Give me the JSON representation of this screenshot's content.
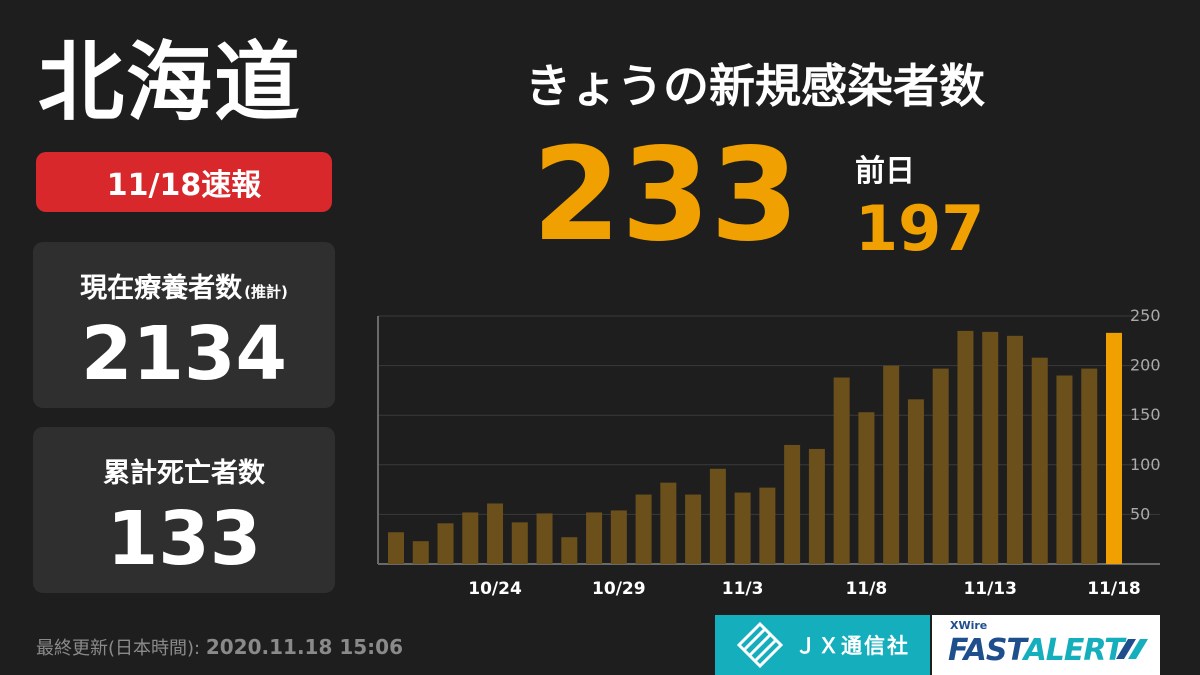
{
  "region": "北海道",
  "badge": "11/18速報",
  "current_care": {
    "label": "現在療養者数",
    "note": "(推計)",
    "value": "2134"
  },
  "cumulative_deaths": {
    "label": "累計死亡者数",
    "value": "133"
  },
  "headline": "きょうの新規感染者数",
  "today_count": "233",
  "previous_day": {
    "label": "前日",
    "value": "197"
  },
  "last_updated": {
    "label": "最終更新(日本時間):",
    "timestamp": "2020.11.18 15:06"
  },
  "logos": {
    "jx": "ＪＸ通信社",
    "xwire": "XWire",
    "fast": "FAST",
    "alert": "ALERT"
  },
  "colors": {
    "accent": "#f0a000",
    "bar": "#6b501c",
    "badge": "#d8282b",
    "background": "#1e1e1e",
    "teal": "#15aebd"
  },
  "chart_data": {
    "type": "bar",
    "categories": [
      "10/20",
      "10/21",
      "10/22",
      "10/23",
      "10/24",
      "10/25",
      "10/26",
      "10/27",
      "10/28",
      "10/29",
      "10/30",
      "10/31",
      "11/1",
      "11/2",
      "11/3",
      "11/4",
      "11/5",
      "11/6",
      "11/7",
      "11/8",
      "11/9",
      "11/10",
      "11/11",
      "11/12",
      "11/13",
      "11/14",
      "11/15",
      "11/16",
      "11/17",
      "11/18"
    ],
    "values": [
      32,
      23,
      41,
      52,
      61,
      42,
      51,
      27,
      52,
      54,
      70,
      82,
      70,
      96,
      72,
      77,
      120,
      116,
      188,
      153,
      200,
      166,
      197,
      235,
      234,
      230,
      208,
      190,
      197,
      233
    ],
    "x_tick_labels": [
      "10/24",
      "10/29",
      "11/3",
      "11/8",
      "11/13",
      "11/18"
    ],
    "y_ticks": [
      50,
      100,
      150,
      200,
      250
    ],
    "ylim": [
      0,
      250
    ],
    "highlight": "11/18",
    "grid": true
  }
}
